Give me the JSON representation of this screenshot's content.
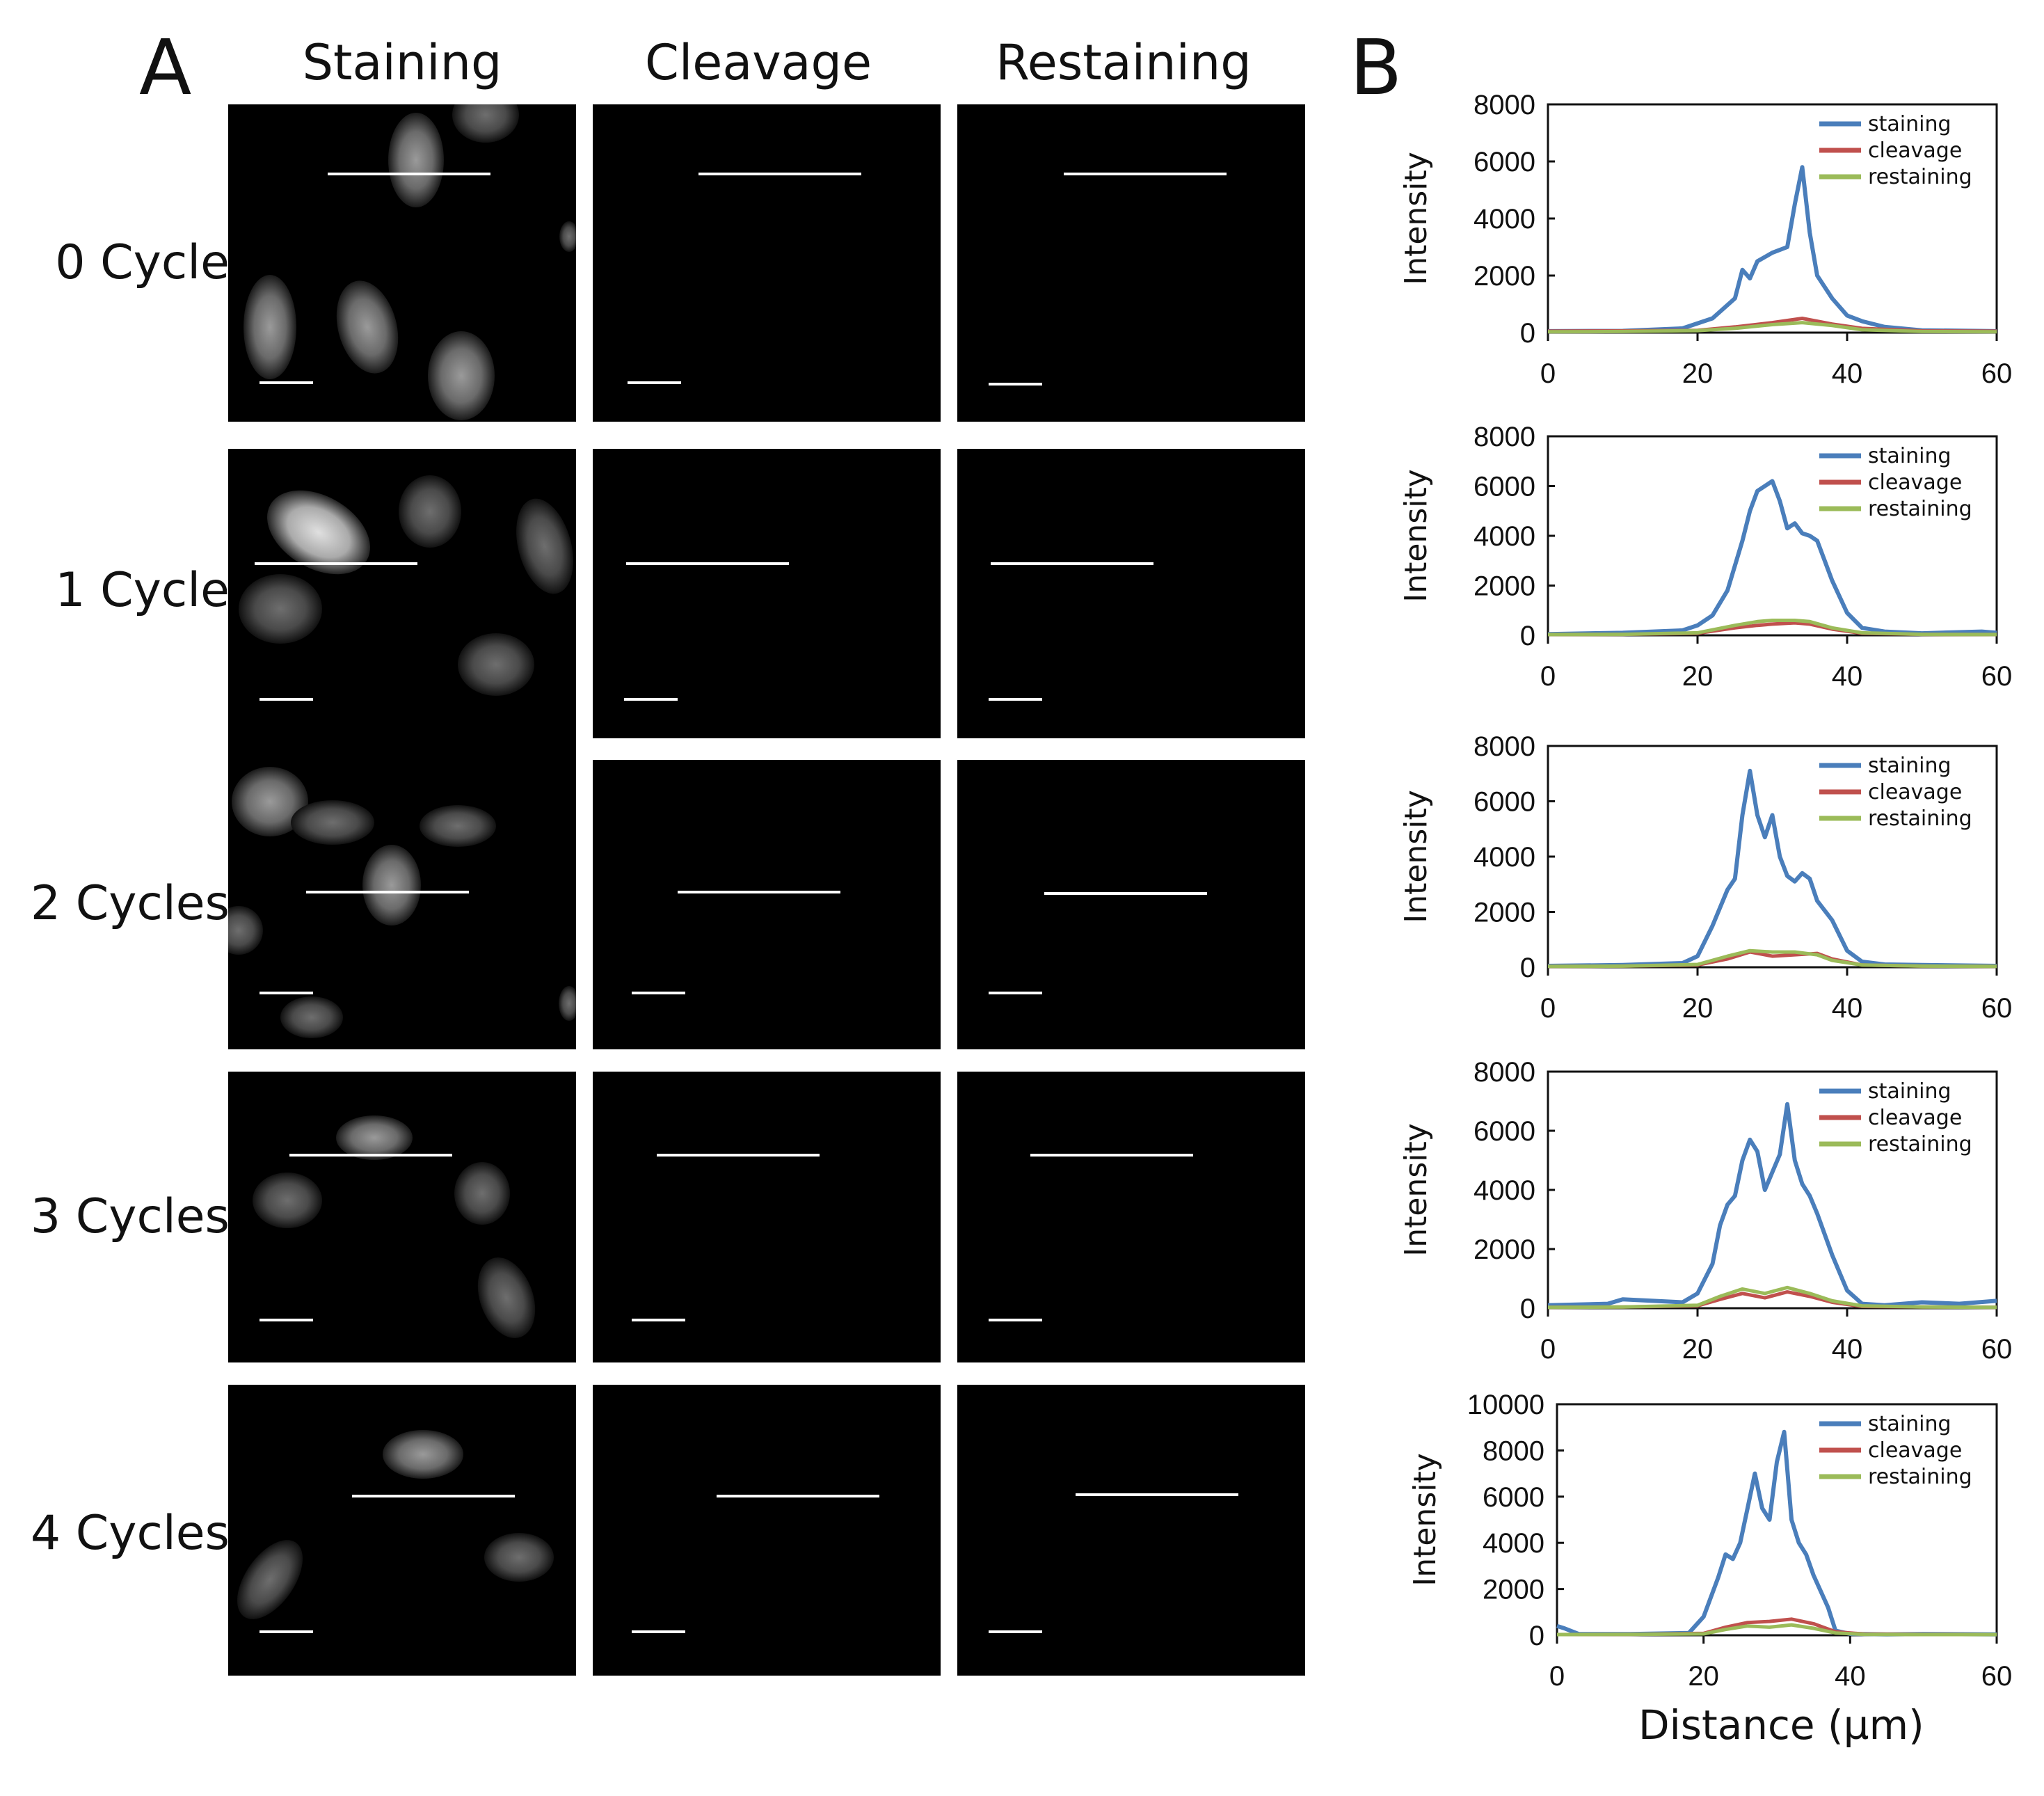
{
  "figure": {
    "panel_a_label": "A",
    "panel_b_label": "B",
    "columns": [
      "Staining",
      "Cleavage",
      "Restaining"
    ],
    "rows": [
      "0 Cycle",
      "1 Cycle",
      "2 Cycles",
      "3 Cycles",
      "4 Cycles"
    ],
    "x_axis_title": "Distance (µm)",
    "y_axis_title": "Intensity"
  },
  "colors": {
    "staining": "#4a7ebb",
    "cleavage": "#c0504d",
    "restaining": "#9bbb59",
    "background": "#000000",
    "line_marker": "#ffffff"
  },
  "chart_data": [
    {
      "type": "line",
      "row": "0 Cycle",
      "xlabel": "",
      "ylabel": "Intensity",
      "xlim": [
        0,
        60
      ],
      "ylim": [
        0,
        8000
      ],
      "xticks": [
        0,
        20,
        40,
        60
      ],
      "yticks": [
        0,
        2000,
        4000,
        6000,
        8000
      ],
      "legend": [
        "staining",
        "cleavage",
        "restaining"
      ],
      "legend_position": "top-right",
      "series": [
        {
          "name": "staining",
          "x": [
            0,
            10,
            18,
            22,
            25,
            26,
            27,
            28,
            30,
            32,
            33,
            34,
            35,
            36,
            38,
            40,
            42,
            45,
            50,
            60
          ],
          "y": [
            50,
            60,
            150,
            500,
            1200,
            2200,
            1900,
            2500,
            2800,
            3000,
            4500,
            5800,
            3500,
            2000,
            1200,
            600,
            400,
            200,
            80,
            50
          ]
        },
        {
          "name": "cleavage",
          "x": [
            0,
            10,
            20,
            25,
            30,
            34,
            38,
            42,
            50,
            60
          ],
          "y": [
            50,
            60,
            80,
            200,
            350,
            500,
            300,
            150,
            60,
            50
          ]
        },
        {
          "name": "restaining",
          "x": [
            0,
            10,
            20,
            25,
            30,
            34,
            38,
            42,
            50,
            60
          ],
          "y": [
            30,
            40,
            70,
            150,
            280,
            350,
            250,
            100,
            40,
            30
          ]
        }
      ]
    },
    {
      "type": "line",
      "row": "1 Cycle",
      "xlabel": "",
      "ylabel": "Intensity",
      "xlim": [
        0,
        60
      ],
      "ylim": [
        0,
        8000
      ],
      "xticks": [
        0,
        20,
        40,
        60
      ],
      "yticks": [
        0,
        2000,
        4000,
        6000,
        8000
      ],
      "legend": [
        "staining",
        "cleavage",
        "restaining"
      ],
      "legend_position": "top-right",
      "series": [
        {
          "name": "staining",
          "x": [
            0,
            10,
            18,
            20,
            22,
            24,
            26,
            27,
            28,
            29,
            30,
            31,
            32,
            33,
            34,
            35,
            36,
            37,
            38,
            40,
            42,
            45,
            50,
            58,
            60
          ],
          "y": [
            50,
            100,
            200,
            400,
            800,
            1800,
            3800,
            5000,
            5800,
            6000,
            6200,
            5400,
            4300,
            4500,
            4100,
            4000,
            3800,
            3000,
            2200,
            900,
            300,
            150,
            80,
            150,
            100
          ]
        },
        {
          "name": "cleavage",
          "x": [
            0,
            10,
            20,
            25,
            28,
            30,
            33,
            35,
            38,
            42,
            50,
            60
          ],
          "y": [
            30,
            40,
            80,
            300,
            400,
            450,
            500,
            450,
            250,
            80,
            40,
            30
          ]
        },
        {
          "name": "restaining",
          "x": [
            0,
            10,
            20,
            25,
            28,
            30,
            33,
            35,
            38,
            42,
            50,
            60
          ],
          "y": [
            30,
            40,
            100,
            400,
            550,
            600,
            600,
            550,
            300,
            100,
            40,
            30
          ]
        }
      ]
    },
    {
      "type": "line",
      "row": "2 Cycles",
      "xlabel": "",
      "ylabel": "Intensity",
      "xlim": [
        0,
        60
      ],
      "ylim": [
        0,
        8000
      ],
      "xticks": [
        0,
        20,
        40,
        60
      ],
      "yticks": [
        0,
        2000,
        4000,
        6000,
        8000
      ],
      "legend": [
        "staining",
        "cleavage",
        "restaining"
      ],
      "legend_position": "top-right",
      "series": [
        {
          "name": "staining",
          "x": [
            0,
            10,
            18,
            20,
            22,
            24,
            25,
            26,
            27,
            28,
            29,
            30,
            31,
            32,
            33,
            34,
            35,
            36,
            38,
            40,
            42,
            45,
            50,
            60
          ],
          "y": [
            50,
            80,
            150,
            400,
            1500,
            2800,
            3200,
            5500,
            7100,
            5500,
            4700,
            5500,
            4000,
            3300,
            3100,
            3400,
            3200,
            2400,
            1700,
            600,
            200,
            100,
            80,
            50
          ]
        },
        {
          "name": "cleavage",
          "x": [
            0,
            10,
            20,
            24,
            27,
            30,
            33,
            36,
            38,
            42,
            50,
            60
          ],
          "y": [
            30,
            40,
            80,
            300,
            550,
            400,
            450,
            500,
            300,
            80,
            40,
            30
          ]
        },
        {
          "name": "restaining",
          "x": [
            0,
            10,
            20,
            24,
            27,
            30,
            33,
            36,
            38,
            42,
            50,
            60
          ],
          "y": [
            30,
            40,
            100,
            400,
            600,
            550,
            550,
            450,
            250,
            80,
            40,
            30
          ]
        }
      ]
    },
    {
      "type": "line",
      "row": "3 Cycles",
      "xlabel": "",
      "ylabel": "Intensity",
      "xlim": [
        0,
        60
      ],
      "ylim": [
        0,
        8000
      ],
      "xticks": [
        0,
        20,
        40,
        60
      ],
      "yticks": [
        0,
        2000,
        4000,
        6000,
        8000
      ],
      "legend": [
        "staining",
        "cleavage",
        "restaining"
      ],
      "legend_position": "top-right",
      "series": [
        {
          "name": "staining",
          "x": [
            0,
            8,
            10,
            18,
            20,
            22,
            23,
            24,
            25,
            26,
            27,
            28,
            29,
            30,
            31,
            32,
            33,
            34,
            35,
            36,
            38,
            40,
            42,
            45,
            50,
            55,
            60
          ],
          "y": [
            100,
            150,
            300,
            200,
            500,
            1500,
            2800,
            3500,
            3800,
            5000,
            5700,
            5300,
            4000,
            4600,
            5200,
            6900,
            5000,
            4200,
            3800,
            3200,
            1800,
            600,
            150,
            100,
            200,
            150,
            250
          ]
        },
        {
          "name": "cleavage",
          "x": [
            0,
            10,
            20,
            23,
            26,
            29,
            32,
            35,
            38,
            42,
            50,
            60
          ],
          "y": [
            30,
            40,
            80,
            300,
            500,
            350,
            550,
            400,
            200,
            60,
            40,
            30
          ]
        },
        {
          "name": "restaining",
          "x": [
            0,
            10,
            20,
            23,
            26,
            29,
            32,
            35,
            38,
            42,
            50,
            60
          ],
          "y": [
            30,
            40,
            100,
            400,
            650,
            500,
            700,
            500,
            250,
            80,
            40,
            30
          ]
        }
      ]
    },
    {
      "type": "line",
      "row": "4 Cycles",
      "xlabel": "Distance (µm)",
      "ylabel": "Intensity",
      "xlim": [
        0,
        60
      ],
      "ylim": [
        0,
        10000
      ],
      "xticks": [
        0,
        20,
        40,
        60
      ],
      "yticks": [
        0,
        2000,
        4000,
        6000,
        8000,
        10000
      ],
      "legend": [
        "staining",
        "cleavage",
        "restaining"
      ],
      "legend_position": "top-right",
      "series": [
        {
          "name": "staining",
          "x": [
            0,
            1,
            3,
            10,
            18,
            20,
            22,
            23,
            24,
            25,
            26,
            27,
            28,
            29,
            30,
            31,
            32,
            33,
            34,
            35,
            37,
            38,
            40,
            45,
            50,
            60
          ],
          "y": [
            400,
            300,
            50,
            50,
            100,
            800,
            2500,
            3500,
            3300,
            4000,
            5500,
            7000,
            5500,
            5000,
            7500,
            8800,
            5000,
            4000,
            3500,
            2600,
            1200,
            200,
            60,
            40,
            50,
            40
          ]
        },
        {
          "name": "cleavage",
          "x": [
            0,
            10,
            20,
            23,
            26,
            29,
            32,
            35,
            38,
            42,
            50,
            60
          ],
          "y": [
            30,
            40,
            80,
            350,
            550,
            600,
            700,
            500,
            150,
            50,
            40,
            30
          ]
        },
        {
          "name": "restaining",
          "x": [
            0,
            10,
            20,
            23,
            26,
            29,
            32,
            35,
            38,
            42,
            50,
            60
          ],
          "y": [
            30,
            40,
            60,
            250,
            400,
            350,
            450,
            300,
            100,
            40,
            30,
            30
          ]
        }
      ]
    }
  ]
}
